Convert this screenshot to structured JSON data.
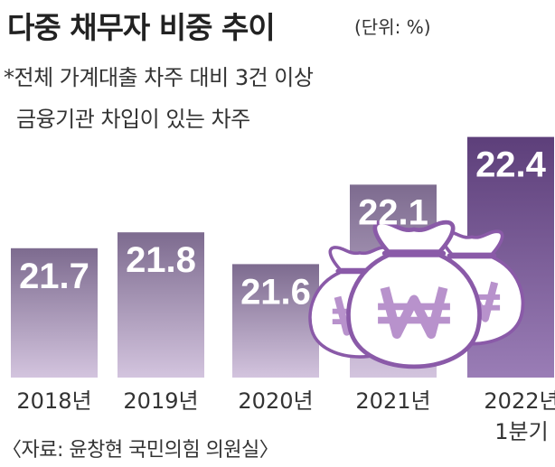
{
  "title": "다중 채무자 비중 추이",
  "unit": "(단위: %)",
  "note_line1": "*전체 가계대출 차주 대비 3건 이상",
  "note_line2": "금융기관 차입이 있는 차주",
  "source": "〈자료: 윤창현 국민의힘 의원실〉",
  "icons": [
    "money-bag-icon",
    "won-sign-icon"
  ],
  "chart_data": {
    "type": "bar",
    "categories": [
      "2018년",
      "2019년",
      "2020년",
      "2021년",
      "2022년 1분기"
    ],
    "category_lines": [
      [
        "2018년"
      ],
      [
        "2019년"
      ],
      [
        "2020년"
      ],
      [
        "2021년"
      ],
      [
        "2022년",
        "1분기"
      ]
    ],
    "values": [
      21.7,
      21.8,
      21.6,
      22.1,
      22.4
    ],
    "value_labels": [
      "21.7",
      "21.8",
      "21.6",
      "22.1",
      "22.4"
    ],
    "title": "다중 채무자 비중 추이",
    "xlabel": "",
    "ylabel": "",
    "colors": {
      "bar_top": "#7d6b8f",
      "bar_bottom": "#d3c4de",
      "last_bar_top": "#5d3f7a",
      "last_bar_bottom": "#9a7db6",
      "bag_fill": "#ffffff",
      "bag_stroke": "#8a5aa8",
      "won_fill": "#b892cc"
    }
  }
}
